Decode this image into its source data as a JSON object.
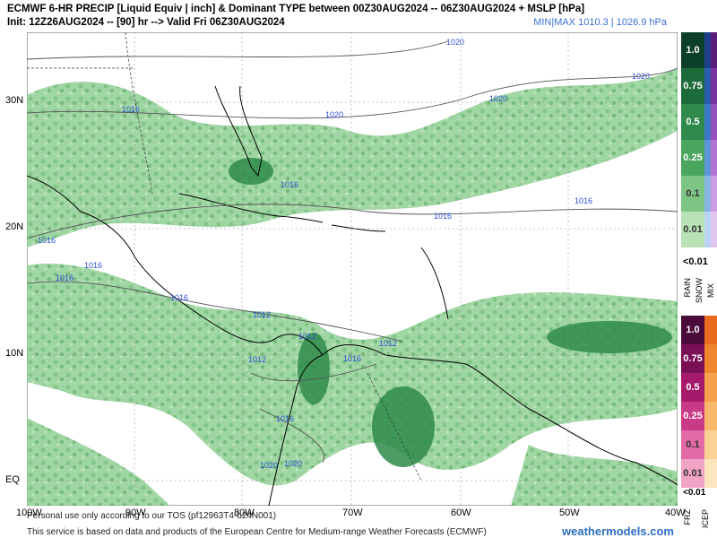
{
  "header": {
    "line1": "ECMWF 6-HR PRECIP [Liquid Equiv | inch] & Dominant TYPE between 00Z30AUG2024 -- 06Z30AUG2024 + MSLP [hPa]",
    "line2": "Init: 12Z26AUG2024 -- [90] hr --> Valid Fri 06Z30AUG2024",
    "minmax": "MIN|MAX 1010.3 | 1026.9 hPa"
  },
  "axes": {
    "lat_labels": [
      "30N",
      "20N",
      "10N",
      "EQ"
    ],
    "lon_labels": [
      "100W",
      "90W",
      "80W",
      "70W",
      "60W",
      "50W",
      "40W"
    ]
  },
  "isobars": [
    {
      "label": "1020"
    },
    {
      "label": "1020"
    },
    {
      "label": "1020"
    },
    {
      "label": "1020"
    },
    {
      "label": "1016"
    },
    {
      "label": "1016"
    },
    {
      "label": "1016"
    },
    {
      "label": "1016"
    },
    {
      "label": "1016"
    },
    {
      "label": "1016"
    },
    {
      "label": "1016"
    },
    {
      "label": "1016"
    },
    {
      "label": "1012"
    },
    {
      "label": "1012"
    },
    {
      "label": "1012"
    },
    {
      "label": "1012"
    },
    {
      "label": "1016"
    },
    {
      "label": "1020"
    },
    {
      "label": "1020"
    },
    {
      "label": "1016"
    }
  ],
  "legend": {
    "rain": [
      "1.0",
      "0.75",
      "0.5",
      "0.25",
      "0.1",
      "0.01"
    ],
    "rain_min": "<0.01",
    "type_labels": [
      "RAIN",
      "SNOW",
      "MIX"
    ],
    "frz": [
      "1.0",
      "0.75",
      "0.5",
      "0.25",
      "0.1",
      "0.01"
    ],
    "frz_min": "<0.01",
    "frz_labels": [
      "FRZ",
      "ICEP"
    ],
    "colors": {
      "rain": [
        "#0b3f2a",
        "#1d6a3a",
        "#2f8a4c",
        "#4aa55f",
        "#7cc585",
        "#b8e2b5"
      ],
      "snow": [
        "#1e3f8c",
        "#2a5db0",
        "#3f79c9",
        "#5d95d8",
        "#88b4e6",
        "#b9d3f2"
      ],
      "mix": [
        "#5a1e7a",
        "#7a35a0",
        "#9650bd",
        "#b274d3",
        "#cc9de3",
        "#e3c6f0"
      ],
      "frz": [
        "#4a0a3a",
        "#7a0f55",
        "#a51a6a",
        "#c93a86",
        "#e36aa6",
        "#f1a3c6"
      ],
      "icep": [
        "#e86a1c",
        "#f0862e",
        "#f5a04a",
        "#f8b96c",
        "#fbd194",
        "#fde6bf"
      ]
    }
  },
  "footer": {
    "line1": "Personal use only according to our TOS (pf12963T4-b24N001)",
    "line2": "This service is based on data and products of the European Centre for Medium-range Weather Forecasts (ECMWF)",
    "watermark": "weathermodels.com"
  }
}
